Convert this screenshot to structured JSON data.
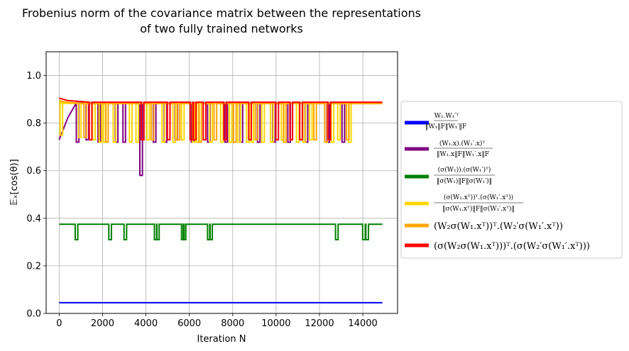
{
  "chart_data": {
    "type": "line",
    "title_lines": [
      "Frobenius norm of the covariance matrix between the representations",
      "of  two fully trained networks"
    ],
    "xlabel": "Iteration N",
    "ylabel": "𝔼ₓ[cos(θ)]",
    "xlim": [
      -600,
      15600
    ],
    "ylim": [
      0.0,
      1.1
    ],
    "xticks": [
      0,
      2000,
      4000,
      6000,
      8000,
      10000,
      12000,
      14000
    ],
    "xtick_labels": [
      "0",
      "2000",
      "4000",
      "6000",
      "8000",
      "10000",
      "12000",
      "14000"
    ],
    "yticks": [
      0.0,
      0.2,
      0.4,
      0.6,
      0.8,
      1.0
    ],
    "ytick_labels": [
      "0.0",
      "0.2",
      "0.4",
      "0.6",
      "0.8",
      "1.0"
    ],
    "grid": true,
    "legend_position": "center-right-outside",
    "x_end": 14900,
    "series": [
      {
        "name": "W₁.W₁′ᵀ / ‖W₁‖F‖W₁′‖F",
        "color": "#0000ff",
        "base": 0.045,
        "dips": []
      },
      {
        "name": "(W₁.x).(W₁′.x)ᵀ / ‖W₁.x‖F‖W₁′.x‖F",
        "color": "#800080",
        "base": 0.885,
        "start": 0.73,
        "dips": [
          [
            850,
            0.72
          ],
          [
            1300,
            0.73
          ],
          [
            1850,
            0.72
          ],
          [
            2650,
            0.72
          ],
          [
            3000,
            0.72
          ],
          [
            3780,
            0.58
          ],
          [
            4400,
            0.72
          ],
          [
            4900,
            0.72
          ],
          [
            5400,
            0.73
          ],
          [
            6150,
            0.72
          ],
          [
            6900,
            0.72
          ],
          [
            7700,
            0.72
          ],
          [
            8400,
            0.72
          ],
          [
            9200,
            0.72
          ],
          [
            9900,
            0.72
          ],
          [
            10600,
            0.72
          ],
          [
            11400,
            0.72
          ],
          [
            12400,
            0.72
          ],
          [
            13100,
            0.72
          ]
        ]
      },
      {
        "name": "(σ(W₁)).(σ(W₁′)ᵀ) / ‖σ(W₁)‖F‖σ(W₁′)‖",
        "color": "#008000",
        "base": 0.375,
        "dips": [
          [
            800,
            0.31
          ],
          [
            2350,
            0.31
          ],
          [
            3050,
            0.31
          ],
          [
            4450,
            0.31
          ],
          [
            4550,
            0.31
          ],
          [
            5700,
            0.31
          ],
          [
            5780,
            0.31
          ],
          [
            6900,
            0.31
          ],
          [
            7000,
            0.31
          ],
          [
            12800,
            0.31
          ],
          [
            14050,
            0.31
          ],
          [
            14200,
            0.31
          ]
        ]
      },
      {
        "name": "(σ(W₁.xᵀ))ᵀ.(σ(W₁′.xᵀ)) / ‖σ(W₁.xᵀ)‖F‖σ(W₁′.xᵀ)‖",
        "color": "#ffd700",
        "base": 0.883,
        "start": 0.89,
        "dips": [
          [
            100,
            0.75
          ],
          [
            950,
            0.74
          ],
          [
            1600,
            0.73
          ],
          [
            1900,
            0.72
          ],
          [
            2100,
            0.72
          ],
          [
            2550,
            0.72
          ],
          [
            3300,
            0.72
          ],
          [
            3600,
            0.72
          ],
          [
            4100,
            0.73
          ],
          [
            4800,
            0.72
          ],
          [
            5300,
            0.72
          ],
          [
            5700,
            0.73
          ],
          [
            6200,
            0.72
          ],
          [
            6400,
            0.72
          ],
          [
            7000,
            0.72
          ],
          [
            7500,
            0.72
          ],
          [
            7900,
            0.72
          ],
          [
            8300,
            0.72
          ],
          [
            8700,
            0.72
          ],
          [
            8900,
            0.72
          ],
          [
            9400,
            0.72
          ],
          [
            9800,
            0.72
          ],
          [
            10300,
            0.73
          ],
          [
            11000,
            0.72
          ],
          [
            11300,
            0.72
          ],
          [
            11600,
            0.73
          ],
          [
            12600,
            0.72
          ],
          [
            12900,
            0.73
          ],
          [
            13400,
            0.72
          ]
        ]
      },
      {
        "name": "(W₂σ(W₁.xᵀ))ᵀ.(W₂′σ(W₁′.xᵀ))",
        "color": "#ffa500",
        "base": 0.882,
        "start": 0.895,
        "dips": [
          [
            1200,
            0.74
          ],
          [
            2200,
            0.72
          ],
          [
            4300,
            0.73
          ],
          [
            5500,
            0.73
          ],
          [
            6500,
            0.72
          ],
          [
            7200,
            0.73
          ],
          [
            8100,
            0.72
          ],
          [
            9100,
            0.73
          ],
          [
            10400,
            0.72
          ],
          [
            11800,
            0.73
          ],
          [
            12300,
            0.72
          ],
          [
            13300,
            0.73
          ]
        ]
      },
      {
        "name": "(σ(W₂σ(W₁.xᵀ)))ᵀ.(σ(W₂′σ(W₁′.xᵀ)))",
        "color": "#ff0000",
        "base": 0.888,
        "start": 0.905,
        "dips": [
          [
            1450,
            0.73
          ],
          [
            3850,
            0.73
          ],
          [
            5050,
            0.73
          ],
          [
            6100,
            0.73
          ],
          [
            6250,
            0.73
          ],
          [
            6700,
            0.73
          ],
          [
            7650,
            0.73
          ],
          [
            8800,
            0.73
          ],
          [
            10050,
            0.73
          ],
          [
            10700,
            0.73
          ],
          [
            11150,
            0.73
          ],
          [
            12450,
            0.73
          ]
        ]
      }
    ]
  }
}
